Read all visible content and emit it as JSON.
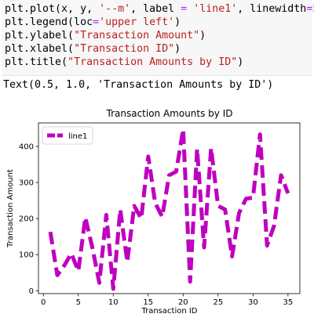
{
  "code": {
    "lines": [
      [
        {
          "t": "plt.plot(x, y, "
        },
        {
          "t": "'--m'",
          "c": "str"
        },
        {
          "t": ", label "
        },
        {
          "t": "=",
          "c": "op"
        },
        {
          "t": " "
        },
        {
          "t": "'line1'",
          "c": "str"
        },
        {
          "t": ", linewidth"
        },
        {
          "t": "=",
          "c": "op"
        },
        {
          "t": "5",
          "c": "num"
        },
        {
          "t": ")"
        }
      ],
      [
        {
          "t": "plt.legend(loc"
        },
        {
          "t": "=",
          "c": "op"
        },
        {
          "t": "'upper left'",
          "c": "str"
        },
        {
          "t": ")"
        }
      ],
      [
        {
          "t": "plt.ylabel("
        },
        {
          "t": "\"Transaction Amount\"",
          "c": "str"
        },
        {
          "t": ")"
        }
      ],
      [
        {
          "t": "plt.xlabel("
        },
        {
          "t": "\"Transaction ID\"",
          "c": "str"
        },
        {
          "t": ")"
        }
      ],
      [
        {
          "t": "plt.title("
        },
        {
          "t": "\"Transaction Amounts by ID\"",
          "c": "str"
        },
        {
          "t": ")"
        }
      ]
    ]
  },
  "output_text": "Text(0.5, 1.0, 'Transaction Amounts by ID')",
  "chart_data": {
    "type": "line",
    "title": "Transaction Amounts by ID",
    "xlabel": "Transaction ID",
    "ylabel": "Transaction Amount",
    "xlim": [
      -0.7,
      36.7
    ],
    "ylim": [
      -8,
      465
    ],
    "xticks": [
      0,
      5,
      10,
      15,
      20,
      25,
      30,
      35
    ],
    "yticks": [
      0,
      100,
      200,
      300,
      400
    ],
    "legend": {
      "position": "upper-left"
    },
    "grid": false,
    "series": [
      {
        "name": "line1",
        "style": "--",
        "color": "#bf00bf",
        "x": [
          1,
          2,
          3,
          4,
          5,
          6,
          7,
          8,
          9,
          10,
          11,
          12,
          13,
          14,
          15,
          16,
          17,
          18,
          19,
          20,
          21,
          22,
          23,
          24,
          25,
          26,
          27,
          28,
          29,
          30,
          31,
          32,
          33,
          34,
          35
        ],
        "y": [
          163,
          43,
          70,
          103,
          55,
          203,
          120,
          22,
          210,
          5,
          225,
          80,
          235,
          200,
          372,
          243,
          205,
          320,
          330,
          447,
          25,
          393,
          120,
          395,
          235,
          225,
          95,
          215,
          255,
          258,
          433,
          125,
          180,
          320,
          270
        ]
      }
    ]
  }
}
